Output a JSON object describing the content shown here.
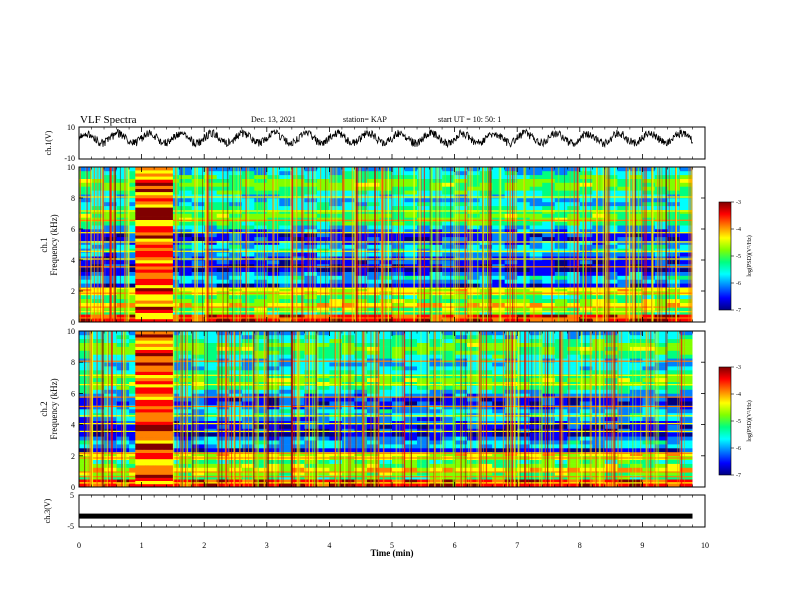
{
  "header": {
    "title": "VLF Spectra",
    "date": "Dec. 13, 2021",
    "station": "station= KAP",
    "start": "start  UT =   10: 50: 1"
  },
  "colors": {
    "spectrum_scale": [
      "#000080",
      "#0000ff",
      "#0080ff",
      "#00ffff",
      "#00ff80",
      "#80ff00",
      "#ffff00",
      "#ff8000",
      "#ff0000",
      "#800000"
    ]
  },
  "chart_data": [
    {
      "id": "ch1-waveform",
      "type": "line",
      "ylabel": "ch.1(V)",
      "ylim": [
        -10,
        10
      ],
      "yticks": [
        "10",
        "-10"
      ],
      "xlim": [
        0,
        10
      ],
      "description_values": {
        "baseline": 3,
        "amplitude": 3,
        "period_min": 0.5
      }
    },
    {
      "id": "ch1-spectrogram",
      "type": "heatmap",
      "ylabel_line1": "ch.1",
      "ylabel_line2": "Frequency  (kHz)",
      "yticks": [
        "0",
        "2",
        "4",
        "6",
        "8",
        "10"
      ],
      "ylim": [
        0,
        10
      ],
      "xlim": [
        0,
        10
      ],
      "data_end_min": 9.8,
      "burst_interval_min": [
        0.9,
        1.5
      ],
      "colorbar": {
        "label": "log(PSD)(V²/Hz)",
        "range": [
          -7,
          -3
        ],
        "ticks": [
          "-3",
          "-4",
          "-5",
          "-6",
          "-7"
        ]
      }
    },
    {
      "id": "ch2-spectrogram",
      "type": "heatmap",
      "ylabel_line1": "ch.2",
      "ylabel_line2": "Frequency  (kHz)",
      "yticks": [
        "0",
        "2",
        "4",
        "6",
        "8",
        "10"
      ],
      "ylim": [
        0,
        10
      ],
      "xlim": [
        0,
        10
      ],
      "data_end_min": 9.8,
      "burst_interval_min": [
        0.9,
        1.5
      ],
      "colorbar": {
        "label": "log(PSD)(V²/Hz)",
        "range": [
          -7,
          -3
        ],
        "ticks": [
          "-3",
          "-4",
          "-5",
          "-6",
          "-7"
        ]
      }
    },
    {
      "id": "ch3-waveform",
      "type": "line",
      "ylabel": "ch.3(V)",
      "ylim": [
        -5,
        5
      ],
      "yticks": [
        "5",
        "-5"
      ],
      "xlim": [
        0,
        10
      ],
      "description_values": {
        "level": -1.6
      }
    }
  ],
  "xaxis": {
    "label": "Time  (min)",
    "ticks": [
      "0",
      "1",
      "2",
      "3",
      "4",
      "5",
      "6",
      "7",
      "8",
      "9",
      "10"
    ]
  }
}
